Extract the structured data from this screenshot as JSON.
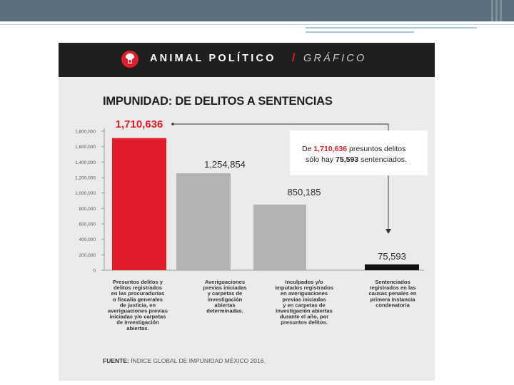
{
  "header": {
    "brand": "ANIMAL POLÍTICO",
    "separator": "/",
    "section": "GRÁFICO"
  },
  "title": "IMPUNIDAD: DE DELITOS A SENTENCIAS",
  "callout": {
    "prefix": "De ",
    "value1": "1,710,636",
    "middle": " presuntos delitos",
    "line2_prefix": "sólo hay ",
    "value2": "75,593",
    "line2_suffix": " sentenciados."
  },
  "source": {
    "label": "FUENTE:",
    "text": " ÍNDICE GLOBAL DE IMPUNIDAD MÉXICO 2016."
  },
  "colors": {
    "highlight": "#e11d2b",
    "bar_gray": "#b3b3b3",
    "bar_black": "#111111",
    "header_bg": "#1f1f1f"
  },
  "chart_data": {
    "type": "bar",
    "title": "IMPUNIDAD: DE DELITOS A SENTENCIAS",
    "xlabel": "",
    "ylabel": "",
    "ylim": [
      0,
      1800000
    ],
    "yticks": [
      "0",
      "200,000",
      "400,000",
      "600,000",
      "800,000",
      "1,000,000",
      "1,200,000",
      "1,400,000",
      "1,600,000",
      "1,800,000"
    ],
    "grid": false,
    "values": [
      1710636,
      1254854,
      850185,
      75593
    ],
    "value_labels": [
      "1,710,636",
      "1,254,854",
      "850,185",
      "75,593"
    ],
    "bar_colors": [
      "#e11d2b",
      "#b3b3b3",
      "#b3b3b3",
      "#111111"
    ],
    "categories": [
      [
        "Presuntos delitos y",
        "delitos registrados",
        "en las procuradurías",
        "o fiscalía generales",
        "de justicia, en",
        "averiguaciones previas",
        "iniciadas y/o carpetas",
        "de investigación",
        "abiertas."
      ],
      [
        "Averiguaciones",
        "previas iniciadas",
        "y carpetas de",
        "investigación",
        "abiertas",
        "determinadas."
      ],
      [
        "Inculpados y/o",
        "imputados registrados",
        "en averiguaciones",
        "previas iniciadas",
        "y en carpetas de",
        "investigación abiertas",
        "durante el año, por",
        "presuntos delitos."
      ],
      [
        "Sentenciados",
        "registrados en las",
        "causas penales en",
        "primera instancia",
        "condenatoria"
      ]
    ]
  }
}
